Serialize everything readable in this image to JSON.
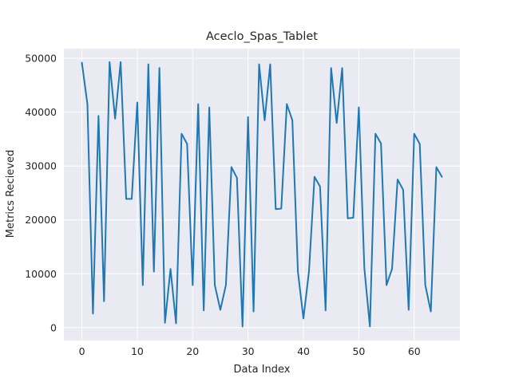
{
  "chart_data": {
    "type": "line",
    "title": "Aceclo_Spas_Tablet",
    "xlabel": "Data Index",
    "ylabel": "Metrics Recieved",
    "xlim": [
      -3.25,
      68.25
    ],
    "ylim": [
      -2400,
      51800
    ],
    "x_ticks": [
      0,
      10,
      20,
      30,
      40,
      50,
      60
    ],
    "y_ticks": [
      0,
      10000,
      20000,
      30000,
      40000,
      50000
    ],
    "grid": true,
    "background": "#eaeaf2",
    "line_color": "#1f77b4",
    "x": [
      0,
      1,
      2,
      3,
      4,
      5,
      6,
      7,
      8,
      9,
      10,
      11,
      12,
      13,
      14,
      15,
      16,
      17,
      18,
      19,
      20,
      21,
      22,
      23,
      24,
      25,
      26,
      27,
      28,
      29,
      30,
      31,
      32,
      33,
      34,
      35,
      36,
      37,
      38,
      39,
      40,
      41,
      42,
      43,
      44,
      45,
      46,
      47,
      48,
      49,
      50,
      51,
      52,
      53,
      54,
      55,
      56,
      57,
      58,
      59,
      60,
      61,
      62,
      63,
      64,
      65
    ],
    "series": [
      {
        "values": [
          49200,
          41500,
          2600,
          39300,
          4900,
          49300,
          38800,
          49300,
          23900,
          23900,
          41800,
          7900,
          48900,
          10400,
          48200,
          900,
          10900,
          800,
          36000,
          34100,
          7900,
          41500,
          3200,
          40900,
          7900,
          3300,
          7900,
          29800,
          27800,
          200,
          39100,
          3000,
          48900,
          38500,
          48900,
          22000,
          22100,
          41500,
          38500,
          10400,
          1700,
          10400,
          28000,
          26200,
          3200,
          48200,
          38000,
          48200,
          20300,
          20400,
          40900,
          11000,
          200,
          36000,
          34200,
          7900,
          10900,
          27500,
          25600,
          3300,
          36000,
          34100,
          7900,
          3000,
          29800,
          28000
        ]
      }
    ]
  }
}
